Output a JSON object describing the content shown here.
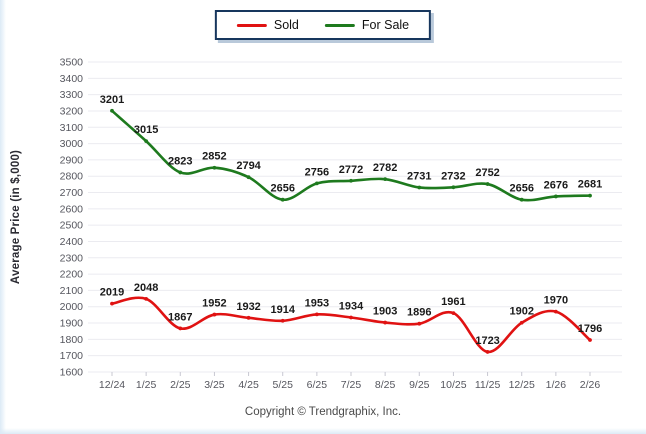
{
  "page": {
    "footer": "Copyright © Trendgraphix, Inc.",
    "background": "#ffffff",
    "edge_tint": "#dceaf6"
  },
  "legend": {
    "position": "top-center",
    "border_color": "#17365d",
    "shadow_color": "#b9c9da"
  },
  "chart_data": {
    "type": "line",
    "title": "",
    "xlabel": "",
    "ylabel": "Average Price (in $,000)",
    "categories": [
      "12/24",
      "1/25",
      "2/25",
      "3/25",
      "4/25",
      "5/25",
      "6/25",
      "7/25",
      "8/25",
      "9/25",
      "10/25",
      "11/25",
      "12/25",
      "1/26",
      "2/26"
    ],
    "series": [
      {
        "name": "Sold",
        "color": "#e01212",
        "values": [
          2019,
          2048,
          1867,
          1952,
          1932,
          1914,
          1953,
          1934,
          1903,
          1896,
          1961,
          1723,
          1902,
          1970,
          1796
        ]
      },
      {
        "name": "For Sale",
        "color": "#1e7a1e",
        "values": [
          3201,
          3015,
          2823,
          2852,
          2794,
          2656,
          2756,
          2772,
          2782,
          2731,
          2732,
          2752,
          2656,
          2676,
          2681
        ]
      }
    ],
    "ylim": [
      1600,
      3500
    ],
    "ytick_step": 100,
    "grid": true,
    "line_style": "smooth",
    "point_labels": true,
    "legend_position": "top-center"
  },
  "colors": {
    "gridline": "#ebebf0",
    "tick": "#c8c8d2",
    "tick_label": "#55565e",
    "data_label": "#1a1a1a",
    "axis_title": "#2b2b33",
    "footer": "#4a4a4a"
  }
}
